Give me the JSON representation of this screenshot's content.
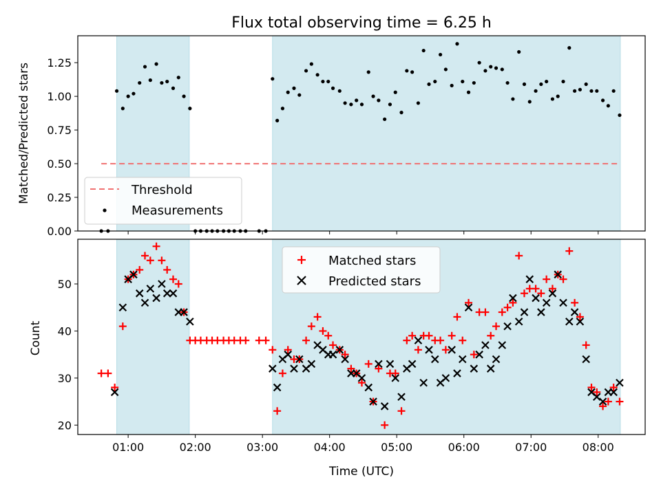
{
  "chart_data": [
    {
      "type": "scatter",
      "title": "Flux total observing time = 6.25 h",
      "ylabel": "Matched/Predicted stars",
      "xlabel": "",
      "xlim": [
        0.25,
        8.7
      ],
      "ylim": [
        0,
        1.45
      ],
      "yticks": [
        0,
        0.25,
        0.5,
        0.75,
        1.0,
        1.25
      ],
      "ytick_labels": [
        "0.00",
        "0.25",
        "0.50",
        "0.75",
        "1.00",
        "1.25"
      ],
      "threshold": 0.5,
      "threshold_range": [
        0.6,
        8.3
      ],
      "threshold_color": "#f07070",
      "shaded_spans": [
        [
          0.83,
          1.91
        ],
        [
          3.15,
          8.33
        ]
      ],
      "shade_color": "#d3eaf0",
      "legend": {
        "position": "lower-left",
        "entries": [
          "Threshold",
          "Measurements"
        ]
      },
      "measurements": [
        [
          0.6,
          0
        ],
        [
          0.7,
          0
        ],
        [
          0.83,
          1.04
        ],
        [
          0.92,
          0.91
        ],
        [
          1.0,
          1.0
        ],
        [
          1.08,
          1.02
        ],
        [
          1.17,
          1.1
        ],
        [
          1.25,
          1.22
        ],
        [
          1.33,
          1.12
        ],
        [
          1.42,
          1.24
        ],
        [
          1.5,
          1.1
        ],
        [
          1.58,
          1.11
        ],
        [
          1.67,
          1.06
        ],
        [
          1.75,
          1.14
        ],
        [
          1.83,
          1.0
        ],
        [
          1.92,
          0.91
        ],
        [
          2.0,
          0
        ],
        [
          2.08,
          0
        ],
        [
          2.17,
          0
        ],
        [
          2.25,
          0
        ],
        [
          2.33,
          0
        ],
        [
          2.42,
          0
        ],
        [
          2.5,
          0
        ],
        [
          2.58,
          0
        ],
        [
          2.67,
          0
        ],
        [
          2.75,
          0
        ],
        [
          2.95,
          0
        ],
        [
          3.05,
          0
        ],
        [
          3.15,
          1.13
        ],
        [
          3.22,
          0.82
        ],
        [
          3.3,
          0.91
        ],
        [
          3.38,
          1.03
        ],
        [
          3.47,
          1.06
        ],
        [
          3.55,
          1.01
        ],
        [
          3.65,
          1.19
        ],
        [
          3.73,
          1.24
        ],
        [
          3.82,
          1.16
        ],
        [
          3.9,
          1.11
        ],
        [
          3.98,
          1.11
        ],
        [
          4.05,
          1.06
        ],
        [
          4.15,
          1.04
        ],
        [
          4.23,
          0.95
        ],
        [
          4.32,
          0.94
        ],
        [
          4.4,
          0.97
        ],
        [
          4.48,
          0.94
        ],
        [
          4.58,
          1.18
        ],
        [
          4.65,
          1.0
        ],
        [
          4.73,
          0.97
        ],
        [
          4.82,
          0.83
        ],
        [
          4.9,
          0.94
        ],
        [
          4.98,
          1.03
        ],
        [
          5.07,
          0.88
        ],
        [
          5.15,
          1.19
        ],
        [
          5.23,
          1.18
        ],
        [
          5.32,
          0.95
        ],
        [
          5.4,
          1.34
        ],
        [
          5.48,
          1.09
        ],
        [
          5.57,
          1.11
        ],
        [
          5.65,
          1.31
        ],
        [
          5.73,
          1.2
        ],
        [
          5.82,
          1.08
        ],
        [
          5.9,
          1.39
        ],
        [
          5.98,
          1.11
        ],
        [
          6.07,
          1.03
        ],
        [
          6.15,
          1.1
        ],
        [
          6.23,
          1.25
        ],
        [
          6.32,
          1.19
        ],
        [
          6.4,
          1.22
        ],
        [
          6.48,
          1.21
        ],
        [
          6.57,
          1.2
        ],
        [
          6.65,
          1.1
        ],
        [
          6.73,
          0.98
        ],
        [
          6.82,
          1.33
        ],
        [
          6.9,
          1.09
        ],
        [
          6.98,
          0.96
        ],
        [
          7.07,
          1.04
        ],
        [
          7.15,
          1.09
        ],
        [
          7.23,
          1.11
        ],
        [
          7.32,
          0.98
        ],
        [
          7.4,
          1.0
        ],
        [
          7.48,
          1.11
        ],
        [
          7.57,
          1.36
        ],
        [
          7.65,
          1.04
        ],
        [
          7.73,
          1.05
        ],
        [
          7.82,
          1.09
        ],
        [
          7.9,
          1.04
        ],
        [
          7.98,
          1.04
        ],
        [
          8.07,
          0.97
        ],
        [
          8.15,
          0.93
        ],
        [
          8.23,
          1.04
        ],
        [
          8.32,
          0.86
        ]
      ]
    },
    {
      "type": "scatter",
      "title": "",
      "ylabel": "Count",
      "xlabel": "Time (UTC)",
      "xlim": [
        0.25,
        8.7
      ],
      "ylim": [
        18,
        59.5
      ],
      "yticks": [
        20,
        30,
        40,
        50
      ],
      "ytick_labels": [
        "20",
        "30",
        "40",
        "50"
      ],
      "xticks": [
        1,
        2,
        3,
        4,
        5,
        6,
        7,
        8
      ],
      "xtick_labels": [
        "01:00",
        "02:00",
        "03:00",
        "04:00",
        "05:00",
        "06:00",
        "07:00",
        "08:00"
      ],
      "shaded_spans": [
        [
          0.83,
          1.91
        ],
        [
          3.15,
          8.33
        ]
      ],
      "shade_color": "#d3eaf0",
      "legend": {
        "position": "top-center",
        "entries": [
          "Matched stars",
          "Predicted stars"
        ]
      },
      "matched_color": "#ff0000",
      "predicted_color": "#000000",
      "matched": [
        [
          0.6,
          31
        ],
        [
          0.7,
          31
        ],
        [
          0.8,
          28
        ],
        [
          0.92,
          41
        ],
        [
          1.0,
          51
        ],
        [
          1.08,
          52
        ],
        [
          1.17,
          53
        ],
        [
          1.25,
          56
        ],
        [
          1.33,
          55
        ],
        [
          1.42,
          58
        ],
        [
          1.5,
          55
        ],
        [
          1.58,
          53
        ],
        [
          1.67,
          51
        ],
        [
          1.75,
          50
        ],
        [
          1.83,
          44
        ],
        [
          1.92,
          38
        ],
        [
          2.0,
          38
        ],
        [
          2.08,
          38
        ],
        [
          2.17,
          38
        ],
        [
          2.25,
          38
        ],
        [
          2.33,
          38
        ],
        [
          2.42,
          38
        ],
        [
          2.5,
          38
        ],
        [
          2.58,
          38
        ],
        [
          2.67,
          38
        ],
        [
          2.75,
          38
        ],
        [
          2.95,
          38
        ],
        [
          3.05,
          38
        ],
        [
          3.15,
          36
        ],
        [
          3.22,
          23
        ],
        [
          3.3,
          31
        ],
        [
          3.38,
          36
        ],
        [
          3.47,
          34
        ],
        [
          3.55,
          34
        ],
        [
          3.65,
          38
        ],
        [
          3.73,
          41
        ],
        [
          3.82,
          43
        ],
        [
          3.9,
          40
        ],
        [
          3.98,
          39
        ],
        [
          4.05,
          37
        ],
        [
          4.15,
          36
        ],
        [
          4.23,
          35
        ],
        [
          4.32,
          32
        ],
        [
          4.4,
          31
        ],
        [
          4.48,
          29
        ],
        [
          4.58,
          33
        ],
        [
          4.65,
          25
        ],
        [
          4.73,
          32
        ],
        [
          4.82,
          20
        ],
        [
          4.9,
          31
        ],
        [
          4.98,
          31
        ],
        [
          5.07,
          23
        ],
        [
          5.15,
          38
        ],
        [
          5.23,
          39
        ],
        [
          5.32,
          36
        ],
        [
          5.4,
          39
        ],
        [
          5.48,
          39
        ],
        [
          5.57,
          38
        ],
        [
          5.65,
          38
        ],
        [
          5.73,
          36
        ],
        [
          5.82,
          39
        ],
        [
          5.9,
          43
        ],
        [
          5.98,
          38
        ],
        [
          6.07,
          46
        ],
        [
          6.15,
          35
        ],
        [
          6.23,
          44
        ],
        [
          6.32,
          44
        ],
        [
          6.4,
          39
        ],
        [
          6.48,
          41
        ],
        [
          6.57,
          44
        ],
        [
          6.65,
          45
        ],
        [
          6.73,
          46
        ],
        [
          6.82,
          56
        ],
        [
          6.9,
          48
        ],
        [
          6.98,
          49
        ],
        [
          7.07,
          49
        ],
        [
          7.15,
          48
        ],
        [
          7.23,
          51
        ],
        [
          7.32,
          49
        ],
        [
          7.4,
          52
        ],
        [
          7.48,
          51
        ],
        [
          7.57,
          57
        ],
        [
          7.65,
          46
        ],
        [
          7.73,
          43
        ],
        [
          7.82,
          37
        ],
        [
          7.9,
          28
        ],
        [
          7.98,
          27
        ],
        [
          8.07,
          24
        ],
        [
          8.15,
          25
        ],
        [
          8.23,
          28
        ],
        [
          8.32,
          25
        ]
      ],
      "predicted": [
        [
          0.8,
          27
        ],
        [
          0.92,
          45
        ],
        [
          1.0,
          51
        ],
        [
          1.08,
          52
        ],
        [
          1.17,
          48
        ],
        [
          1.25,
          46
        ],
        [
          1.33,
          49
        ],
        [
          1.42,
          47
        ],
        [
          1.5,
          50
        ],
        [
          1.58,
          48
        ],
        [
          1.67,
          48
        ],
        [
          1.75,
          44
        ],
        [
          1.83,
          44
        ],
        [
          1.92,
          42
        ],
        [
          3.15,
          32
        ],
        [
          3.22,
          28
        ],
        [
          3.3,
          34
        ],
        [
          3.38,
          35
        ],
        [
          3.47,
          32
        ],
        [
          3.55,
          34
        ],
        [
          3.65,
          32
        ],
        [
          3.73,
          33
        ],
        [
          3.82,
          37
        ],
        [
          3.9,
          36
        ],
        [
          3.98,
          35
        ],
        [
          4.05,
          35
        ],
        [
          4.15,
          36
        ],
        [
          4.23,
          34
        ],
        [
          4.32,
          31
        ],
        [
          4.4,
          31
        ],
        [
          4.48,
          30
        ],
        [
          4.58,
          28
        ],
        [
          4.65,
          25
        ],
        [
          4.73,
          33
        ],
        [
          4.82,
          24
        ],
        [
          4.9,
          33
        ],
        [
          4.98,
          30
        ],
        [
          5.07,
          26
        ],
        [
          5.15,
          32
        ],
        [
          5.23,
          33
        ],
        [
          5.32,
          38
        ],
        [
          5.4,
          29
        ],
        [
          5.48,
          36
        ],
        [
          5.57,
          34
        ],
        [
          5.65,
          29
        ],
        [
          5.73,
          30
        ],
        [
          5.82,
          36
        ],
        [
          5.9,
          31
        ],
        [
          5.98,
          34
        ],
        [
          6.07,
          45
        ],
        [
          6.15,
          32
        ],
        [
          6.23,
          35
        ],
        [
          6.32,
          37
        ],
        [
          6.4,
          32
        ],
        [
          6.48,
          34
        ],
        [
          6.57,
          37
        ],
        [
          6.65,
          41
        ],
        [
          6.73,
          47
        ],
        [
          6.82,
          42
        ],
        [
          6.9,
          44
        ],
        [
          6.98,
          51
        ],
        [
          7.07,
          47
        ],
        [
          7.15,
          44
        ],
        [
          7.23,
          46
        ],
        [
          7.32,
          48
        ],
        [
          7.4,
          52
        ],
        [
          7.48,
          46
        ],
        [
          7.57,
          42
        ],
        [
          7.65,
          44
        ],
        [
          7.73,
          42
        ],
        [
          7.82,
          34
        ],
        [
          7.9,
          27
        ],
        [
          7.98,
          26
        ],
        [
          8.07,
          25
        ],
        [
          8.15,
          27
        ],
        [
          8.23,
          27
        ],
        [
          8.32,
          29
        ]
      ]
    }
  ]
}
